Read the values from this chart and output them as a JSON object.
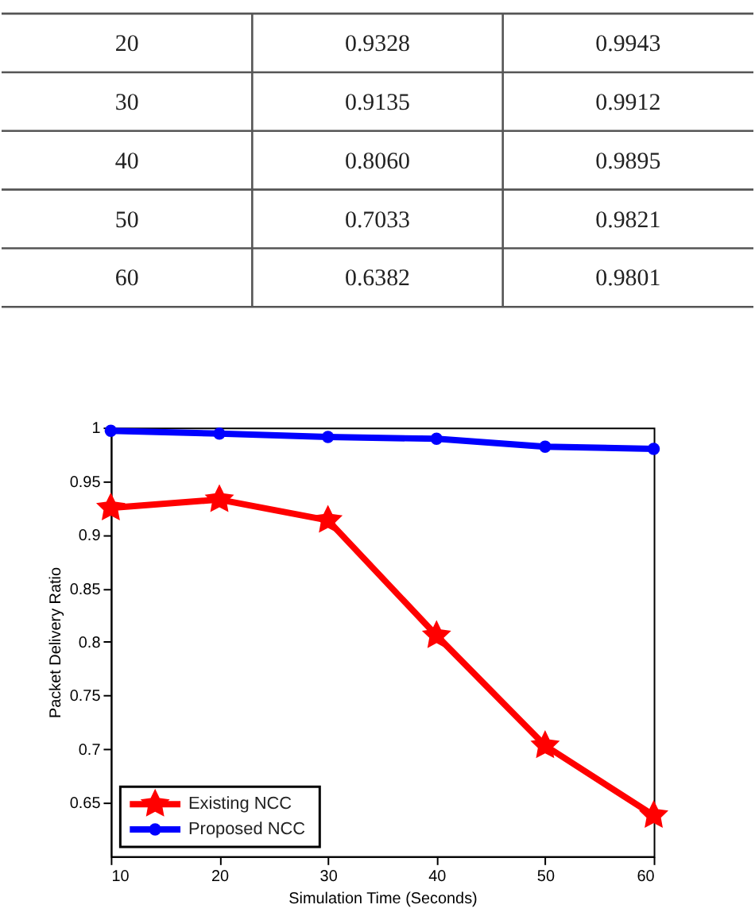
{
  "chart_data": {
    "type": "line",
    "xlabel": "Simulation Time (Seconds)",
    "ylabel": "Packet Delivery Ratio",
    "x": [
      10,
      20,
      30,
      40,
      50,
      60
    ],
    "series": [
      {
        "name": "Existing NCC",
        "color": "#ff0000",
        "marker": "star",
        "values": [
          0.925,
          0.9328,
          0.9135,
          0.806,
          0.7033,
          0.6382
        ]
      },
      {
        "name": "Proposed NCC",
        "color": "#0000ff",
        "marker": "circle",
        "values": [
          0.997,
          0.9943,
          0.9912,
          0.9895,
          0.9821,
          0.9801
        ]
      }
    ],
    "annotations": [
      "20",
      "0.9328",
      "0.9943",
      "30",
      "0.9135",
      "0.9912",
      "40",
      "0.8060",
      "0.9895",
      "50",
      "0.7033",
      "0.9821",
      "60",
      "0.6382",
      "0.9801"
    ],
    "xlim": [
      10,
      60
    ],
    "xticks": [
      10,
      20,
      30,
      40,
      50,
      60
    ],
    "ylim": [
      0.6,
      1.0
    ],
    "yticks": [
      0.65,
      0.7,
      0.75,
      0.8,
      0.85,
      0.9,
      0.95,
      1
    ],
    "grid": false,
    "legend": "bottom left",
    "line_style": "solid"
  }
}
